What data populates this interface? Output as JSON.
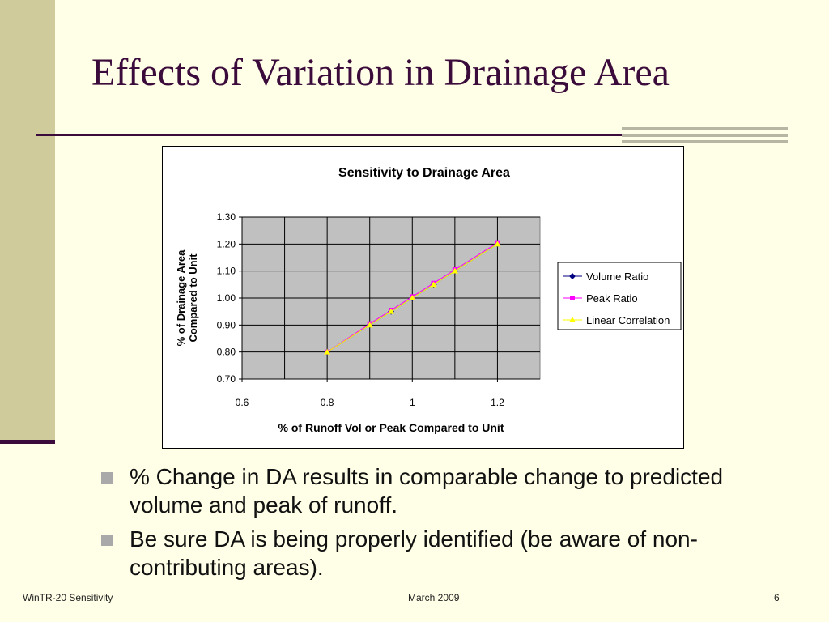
{
  "slide": {
    "title": "Effects of Variation in Drainage Area",
    "bullets": [
      "% Change in DA results in comparable change to predicted volume and peak of runoff.",
      "Be sure DA is being properly identified (be aware of non-contributing areas)."
    ],
    "footer": {
      "left": "WinTR-20 Sensitivity",
      "center": "March 2009",
      "right": "6"
    }
  },
  "chart_data": {
    "type": "line",
    "title": "Sensitivity to Drainage Area",
    "xlabel": "% of Runoff Vol or Peak Compared to Unit",
    "ylabel_lines": [
      "% of Drainage Area",
      "Compared to Unit"
    ],
    "xlim": [
      0.6,
      1.3
    ],
    "ylim": [
      0.7,
      1.3
    ],
    "xticks": [
      "0.6",
      "0.8",
      "1",
      "1.2"
    ],
    "xtick_values": [
      0.6,
      0.8,
      1.0,
      1.2
    ],
    "yticks": [
      "0.70",
      "0.80",
      "0.90",
      "1.00",
      "1.10",
      "1.20",
      "1.30"
    ],
    "ytick_values": [
      0.7,
      0.8,
      0.9,
      1.0,
      1.1,
      1.2,
      1.3
    ],
    "grid": true,
    "plot_background": "#c0c0c0",
    "legend_position": "right",
    "series": [
      {
        "name": "Volume Ratio",
        "color": "#000080",
        "marker": "diamond",
        "x": [
          0.8,
          0.9,
          0.95,
          1.0,
          1.05,
          1.1,
          1.2
        ],
        "y": [
          0.8,
          0.9,
          0.95,
          1.0,
          1.05,
          1.1,
          1.2
        ]
      },
      {
        "name": "Peak Ratio",
        "color": "#ff00ff",
        "marker": "square",
        "x": [
          0.8,
          0.9,
          0.95,
          1.0,
          1.05,
          1.1,
          1.2
        ],
        "y": [
          0.8,
          0.905,
          0.955,
          1.005,
          1.055,
          1.105,
          1.205
        ]
      },
      {
        "name": "Linear Correlation",
        "color": "#ffff00",
        "marker": "triangle",
        "x": [
          0.8,
          0.9,
          0.95,
          1.0,
          1.05,
          1.1,
          1.2
        ],
        "y": [
          0.8,
          0.9,
          0.95,
          1.0,
          1.05,
          1.1,
          1.2
        ]
      }
    ]
  }
}
